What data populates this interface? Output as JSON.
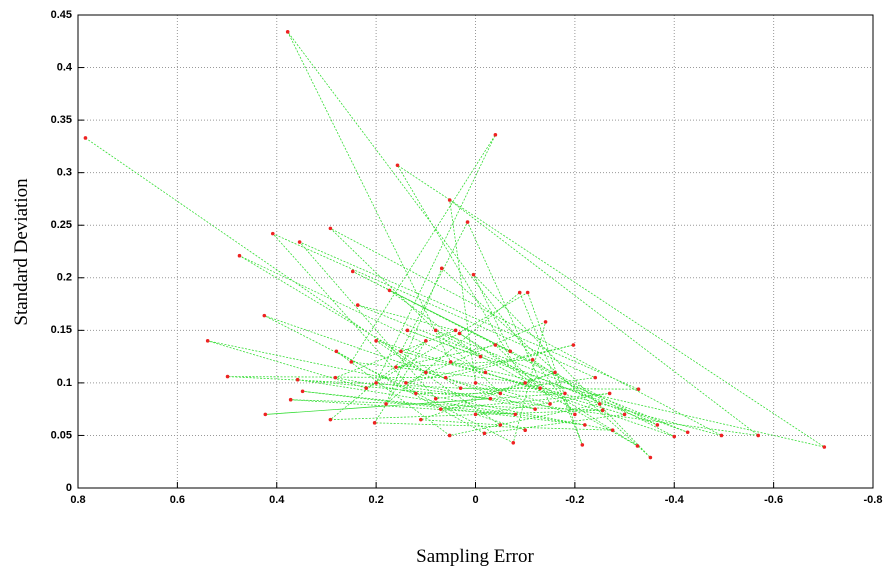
{
  "chart_data": {
    "type": "scatter",
    "x_label": "Sampling Error",
    "y_label": "Standard Deviation",
    "xlim": [
      0.8,
      -0.8
    ],
    "xticks": [
      0.8,
      0.6,
      0.4,
      0.2,
      0,
      -0.2,
      -0.4,
      -0.6,
      -0.8
    ],
    "ylim": [
      0,
      0.45
    ],
    "yticks": [
      0,
      0.05,
      0.1,
      0.15,
      0.2,
      0.25,
      0.3,
      0.35,
      0.4,
      0.45
    ],
    "grid": true,
    "line_color": "#33dd33",
    "marker_color": "#ee2222",
    "x": [
      0.785,
      0.1,
      -0.2,
      0.378,
      0.05,
      -0.702,
      0.157,
      -0.1,
      0.25,
      -0.04,
      0.2,
      -0.569,
      0.052,
      0.0,
      -0.15,
      0.016,
      0.15,
      -0.495,
      0.292,
      -0.05,
      0.12,
      0.408,
      -0.241,
      0.08,
      0.354,
      -0.328,
      0.03,
      0.475,
      -0.02,
      -0.4,
      0.247,
      -0.07,
      0.004,
      -0.352,
      0.068,
      0.18,
      -0.089,
      -0.215,
      -0.105,
      0.22,
      0.539,
      -0.12,
      0.425,
      -0.076,
      -0.141,
      0.14,
      -0.197,
      0.06,
      0.499,
      -0.18,
      0.423,
      -0.03,
      0.358,
      -0.22,
      0.348,
      -0.08,
      0.372,
      -0.256,
      0.292,
      0.1,
      0.203,
      -0.276,
      0.282,
      0.04,
      0.237,
      -0.366,
      0.173,
      -0.01,
      0.137,
      -0.427,
      0.08,
      -0.326,
      0.032,
      -0.13,
      -0.04,
      0.16,
      -0.115,
      -0.25,
      0.052,
      0.28,
      -0.018,
      -0.3,
      0.2,
      -0.05,
      0.11,
      -0.16,
      0.07,
      -0.27,
      0.0,
      -0.1
    ],
    "y": [
      0.333,
      0.11,
      0.07,
      0.434,
      0.12,
      0.039,
      0.307,
      0.1,
      0.12,
      0.336,
      0.1,
      0.05,
      0.274,
      0.1,
      0.08,
      0.253,
      0.13,
      0.05,
      0.247,
      0.09,
      0.09,
      0.242,
      0.105,
      0.085,
      0.234,
      0.094,
      0.095,
      0.221,
      0.11,
      0.049,
      0.206,
      0.13,
      0.203,
      0.029,
      0.209,
      0.08,
      0.186,
      0.041,
      0.186,
      0.095,
      0.14,
      0.075,
      0.164,
      0.043,
      0.158,
      0.1,
      0.136,
      0.105,
      0.106,
      0.09,
      0.07,
      0.085,
      0.103,
      0.06,
      0.092,
      0.07,
      0.084,
      0.074,
      0.065,
      0.14,
      0.062,
      0.055,
      0.105,
      0.15,
      0.174,
      0.06,
      0.188,
      0.125,
      0.15,
      0.053,
      0.15,
      0.04,
      0.147,
      0.095,
      0.136,
      0.115,
      0.122,
      0.08,
      0.05,
      0.13,
      0.052,
      0.07,
      0.14,
      0.06,
      0.065,
      0.11,
      0.075,
      0.09,
      0.07,
      0.055
    ]
  }
}
